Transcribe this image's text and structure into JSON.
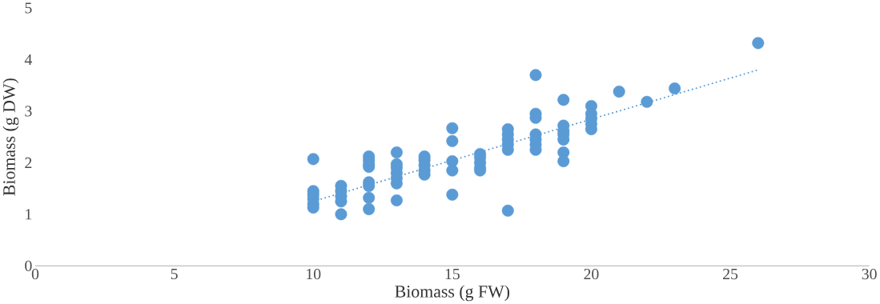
{
  "chart_data": {
    "type": "scatter",
    "xlabel": "Biomass (g FW)",
    "ylabel": "Biomass (g DW)",
    "xlim": [
      0,
      30
    ],
    "xticks": [
      0,
      5,
      10,
      15,
      20,
      25,
      30
    ],
    "ylim": [
      0,
      5
    ],
    "yticks": [
      0,
      1,
      2,
      3,
      4,
      5
    ],
    "grid": false,
    "series": [
      {
        "color": "#5b9bd5",
        "marker": "circle",
        "x": [
          10,
          10,
          10,
          10,
          10,
          10,
          11,
          11,
          11,
          11,
          11,
          12,
          12,
          12,
          12,
          12,
          12,
          12,
          12,
          13,
          13,
          13,
          13,
          13,
          13,
          13,
          14,
          14,
          14,
          14,
          14,
          15,
          15,
          15,
          15,
          15,
          16,
          16,
          16,
          16,
          16,
          17,
          17,
          17,
          17,
          17,
          17,
          18,
          18,
          18,
          18,
          18,
          18,
          18,
          19,
          19,
          19,
          19,
          19,
          19,
          19,
          20,
          20,
          20,
          20,
          20,
          21,
          22,
          23,
          26
        ],
        "values": [
          2.07,
          1.45,
          1.38,
          1.3,
          1.2,
          1.13,
          1.55,
          1.45,
          1.35,
          1.25,
          1.0,
          2.12,
          2.05,
          1.97,
          1.92,
          1.62,
          1.55,
          1.32,
          1.1,
          2.2,
          1.97,
          1.9,
          1.8,
          1.7,
          1.6,
          1.27,
          2.12,
          2.05,
          1.95,
          1.85,
          1.77,
          2.67,
          2.42,
          2.03,
          1.85,
          1.38,
          2.17,
          2.1,
          2.0,
          1.9,
          1.85,
          2.65,
          2.55,
          2.45,
          2.35,
          2.25,
          1.07,
          3.7,
          2.95,
          2.87,
          2.55,
          2.45,
          2.35,
          2.25,
          3.22,
          2.72,
          2.62,
          2.55,
          2.45,
          2.2,
          2.03,
          3.1,
          2.95,
          2.85,
          2.75,
          2.65,
          3.38,
          3.18,
          3.44,
          4.32
        ]
      },
      {
        "type": "line",
        "color": "#5b9bd5",
        "marker": "none",
        "line_style": "dotted",
        "x": [
          10,
          26
        ],
        "values": [
          1.25,
          3.8
        ]
      }
    ]
  }
}
